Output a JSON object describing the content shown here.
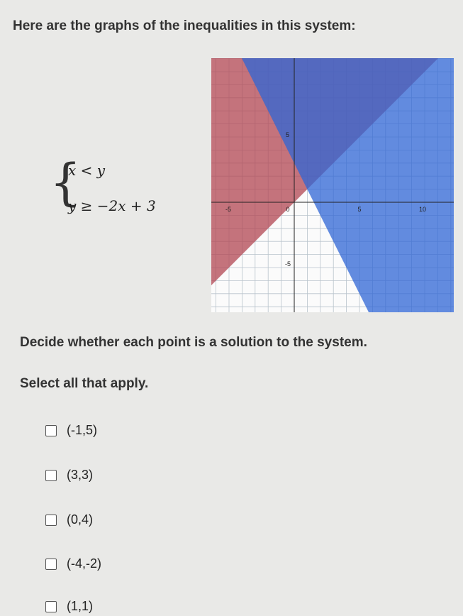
{
  "prompt": "Here are the graphs of the inequalities in this system:",
  "system": [
    "x < y",
    "y ≥ −2x + 3"
  ],
  "graph": {
    "x_tick_labels": [
      "-5",
      "0",
      "5",
      "10"
    ],
    "y_tick_labels": [
      "5",
      "-5"
    ]
  },
  "instruction": "Decide whether each point is a solution to the system.",
  "select_label": "Select all that apply.",
  "options": [
    "(-1,5)",
    "(3,3)",
    "(0,4)",
    "(-4,-2)",
    "(1,1)"
  ]
}
